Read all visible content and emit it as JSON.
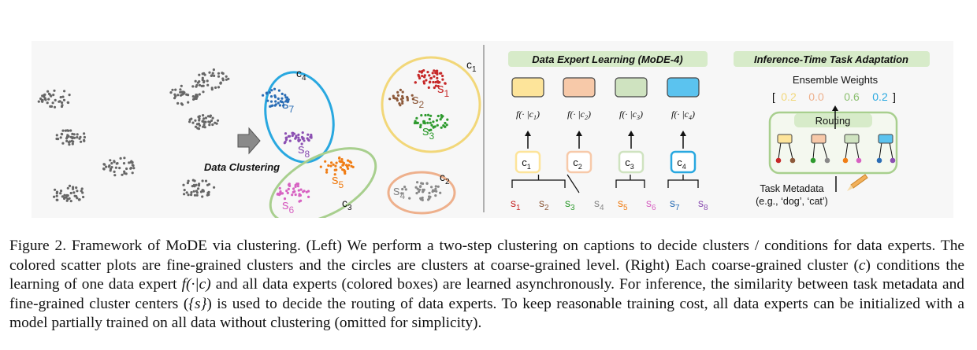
{
  "figure": {
    "left": {
      "arrow_label": "Data Clustering",
      "coarse_labels": [
        "c",
        "c",
        "c",
        "c"
      ],
      "coarse_subs": [
        "1",
        "2",
        "3",
        "4"
      ],
      "fine_labels": [
        "s",
        "s",
        "s",
        "s",
        "s",
        "s",
        "s",
        "s"
      ],
      "fine_subs": [
        "1",
        "2",
        "3",
        "4",
        "5",
        "6",
        "7",
        "8"
      ]
    },
    "middle": {
      "title": "Data Expert Learning (MoDE-4)",
      "experts": [
        {
          "cond": "c",
          "sub": "1",
          "color": "#fde49a",
          "stroke": "#c8b064"
        },
        {
          "cond": "c",
          "sub": "2",
          "color": "#f7c9a9",
          "stroke": "#c99774"
        },
        {
          "cond": "c",
          "sub": "3",
          "color": "#cfe3c0",
          "stroke": "#98b483"
        },
        {
          "cond": "c",
          "sub": "4",
          "color": "#5bc3ef",
          "stroke": "#2b8dbf"
        }
      ],
      "func_prefix": "f(· |",
      "func_suffix": ")",
      "fine_letters": [
        "s",
        "s",
        "s",
        "s",
        "s",
        "s",
        "s",
        "s"
      ],
      "fine_subs": [
        "1",
        "2",
        "3",
        "4",
        "5",
        "6",
        "7",
        "8"
      ]
    },
    "right": {
      "title": "Inference-Time Task Adaptation",
      "ensemble_label": "Ensemble Weights",
      "bracket_open": "[",
      "bracket_close": "]",
      "weights": [
        "0.2",
        "0.0",
        "0.6",
        "0.2"
      ],
      "routing_label": "Routing",
      "metadata_label": "Task Metadata",
      "metadata_example": "(e.g., ‘dog’, ‘cat’)"
    },
    "colors": {
      "c1": "#f2d779",
      "c2": "#eeb08c",
      "c3": "#a8cf8e",
      "c4": "#29a8e0",
      "s1": "#c62828",
      "s2": "#8d5a3b",
      "s3": "#2e9a2e",
      "s4": "#888888",
      "s5": "#f07d14",
      "s6": "#d762c2",
      "s7": "#2a6db5",
      "s8": "#8b4fb2",
      "title_bg": "#d7ebc9",
      "routing_stroke": "#a8cf8e"
    }
  },
  "caption": {
    "p1": "Figure 2. Framework of MoDE via clustering. (Left) We perform a two-step clustering on captions to decide clusters / conditions for data experts. The colored scatter plots are fine-grained clusters and the circles are clusters at coarse-grained level. (Right) Each coarse-grained cluster (",
    "m1": "c",
    "p2": ") conditions the learning of one data expert ",
    "m2": "f(·|c)",
    "p3": " and all data experts (colored boxes) are learned asynchronously. For inference, the similarity between task metadata and fine-grained cluster centers (",
    "m3": "{s}",
    "p4": ") is used to decide the routing of data experts. To keep reasonable training cost, all data experts can be initialized with a model partially trained on all data without clustering (omitted for simplicity)."
  }
}
